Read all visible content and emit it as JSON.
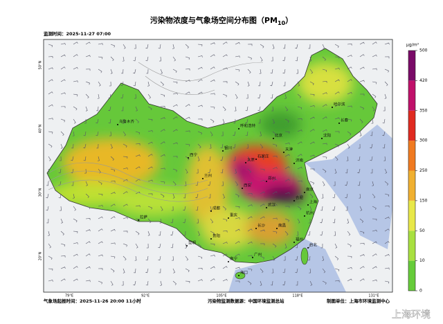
{
  "title": {
    "main": "污染物浓度与气象场空间分布图（PM",
    "sub": "10",
    "end": "）"
  },
  "monitor_time": "监测时间：2025-11-27 07:00",
  "legend": {
    "unit": "μg/m³",
    "ticks": [
      0,
      10,
      50,
      150,
      250,
      300,
      350,
      420,
      500
    ]
  },
  "lat_labels": [
    "20°N",
    "30°N",
    "40°N",
    "50°N"
  ],
  "lon_labels": [
    "79°E",
    "92°E",
    "105°E",
    "118°E",
    "131°E"
  ],
  "cities": [
    "乌鲁木齐",
    "拉萨",
    "西宁",
    "兰州",
    "银川",
    "呼和浩特",
    "北京",
    "天津",
    "石家庄",
    "太原",
    "济南",
    "郑州",
    "西安",
    "武汉",
    "合肥",
    "南京",
    "上海",
    "成都",
    "重庆",
    "贵阳",
    "昆明",
    "长沙",
    "南昌",
    "福州",
    "广州",
    "南宁",
    "海口",
    "哈尔滨",
    "长春",
    "沈阳",
    "杭州",
    "台北"
  ],
  "footer": {
    "forecast": "气象场起报时间：2025-11-26 20:00 11小时",
    "source": "污染物监测数据源：中国环境监测总站",
    "producer": "制图单位：上海市环境监测中心"
  },
  "watermark": "上海环境"
}
